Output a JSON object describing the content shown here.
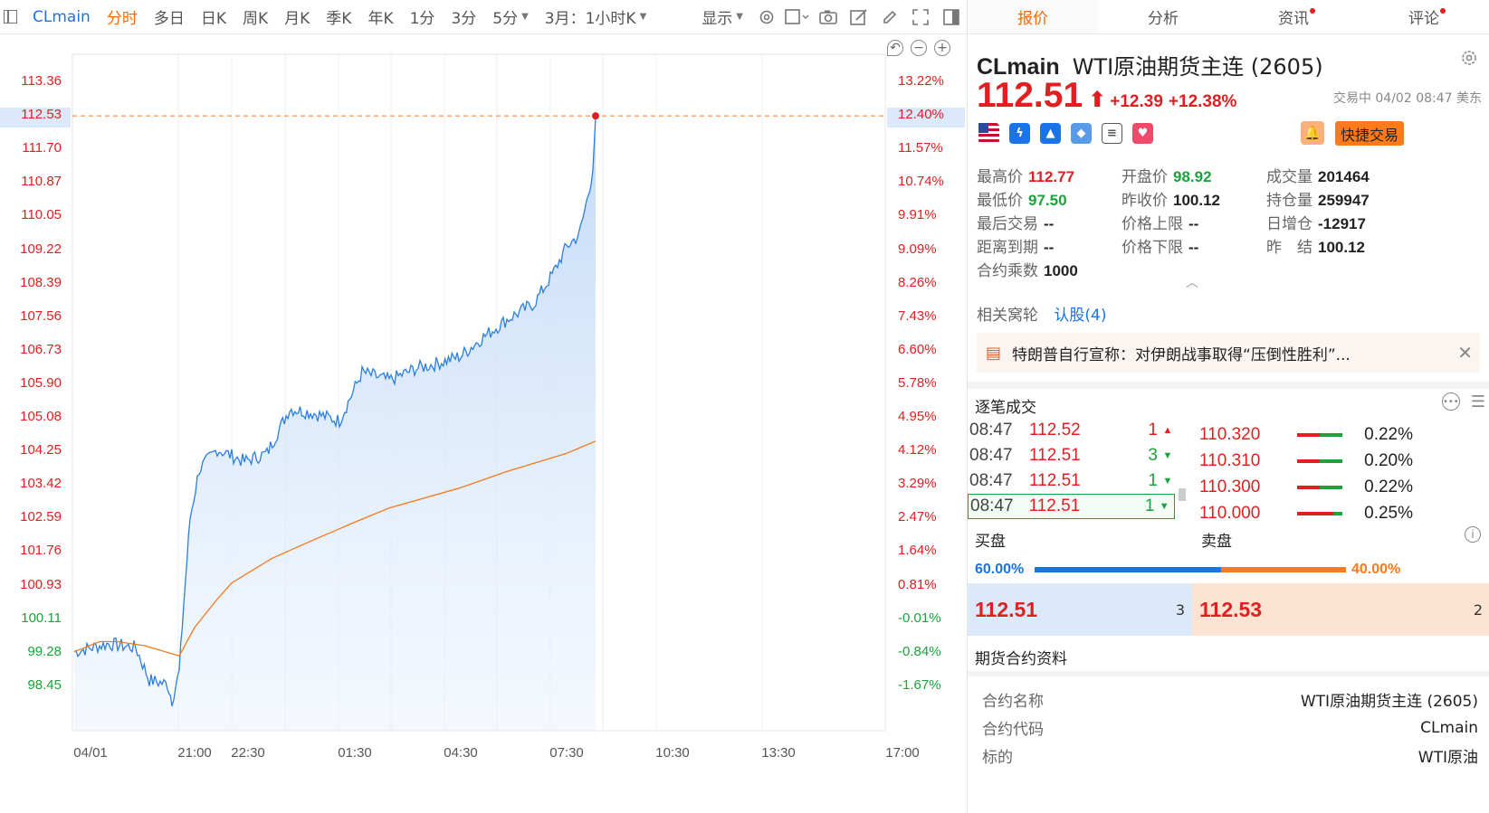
{
  "toolbar": {
    "symbol": "CLmain",
    "periods": [
      "分时",
      "多日",
      "日K",
      "周K",
      "月K",
      "季K",
      "年K",
      "1分",
      "3分",
      "5分"
    ],
    "active_period": "分时",
    "contract_select": "3月：1小时K",
    "display_label": "显示"
  },
  "chart": {
    "left_axis": [
      "113.36",
      "112.53",
      "111.70",
      "110.87",
      "110.05",
      "109.22",
      "108.39",
      "107.56",
      "106.73",
      "105.90",
      "105.08",
      "104.25",
      "103.42",
      "102.59",
      "101.76",
      "100.93",
      "100.11",
      "99.28",
      "98.45"
    ],
    "right_axis": [
      "13.22%",
      "12.40%",
      "11.57%",
      "10.74%",
      "9.91%",
      "9.09%",
      "8.26%",
      "7.43%",
      "6.60%",
      "5.78%",
      "4.95%",
      "4.12%",
      "3.29%",
      "2.47%",
      "1.64%",
      "0.81%",
      "-0.01%",
      "-0.84%",
      "-1.67%"
    ],
    "x_axis": [
      "04/01",
      "21:00",
      "22:30",
      "01:30",
      "04:30",
      "07:30",
      "10:30",
      "13:30",
      "17:00"
    ],
    "colors": {
      "up": "#e02020",
      "down": "#1aa33a",
      "price_line": "#2a7fe0",
      "avg_line": "#f07a20",
      "current_line": "#ff7a1a"
    }
  },
  "chart_data": {
    "type": "line",
    "title": "",
    "xlabel": "",
    "ylabel": "",
    "ylim": [
      98.45,
      113.36
    ],
    "prev_close": 100.12,
    "current": 112.53,
    "series": [
      {
        "name": "",
        "x": [
          "04/01",
          "21:00",
          "22:30",
          "01:30",
          "04:30",
          "07:30",
          "08:47"
        ],
        "values": [
          99.3,
          98.9,
          104.3,
          105.3,
          106.5,
          108.5,
          112.51
        ]
      },
      {
        "name": "",
        "x": [
          "04/01",
          "21:00",
          "22:30",
          "01:30",
          "04:30",
          "07:30",
          "08:47"
        ],
        "values": [
          99.3,
          99.2,
          100.9,
          102.2,
          103.0,
          103.8,
          104.5
        ]
      }
    ]
  },
  "tabs": [
    {
      "label": "报价",
      "dot": false
    },
    {
      "label": "分析",
      "dot": false
    },
    {
      "label": "资讯",
      "dot": true
    },
    {
      "label": "评论",
      "dot": true
    }
  ],
  "quote": {
    "code": "CLmain",
    "name": "WTI原油期货主连 (2605)",
    "price": "112.51",
    "change": "+12.39",
    "change_pct": "+12.38%",
    "status": "交易中 04/02 08:47 美东",
    "fast_trade": "快捷交易"
  },
  "stats": [
    [
      {
        "label": "最高价",
        "value": "112.77",
        "color": "red"
      },
      {
        "label": "开盘价",
        "value": "98.92",
        "color": "green"
      },
      {
        "label": "成交量",
        "value": "201464",
        "color": ""
      }
    ],
    [
      {
        "label": "最低价",
        "value": "97.50",
        "color": "green"
      },
      {
        "label": "昨收价",
        "value": "100.12",
        "color": ""
      },
      {
        "label": "持仓量",
        "value": "259947",
        "color": ""
      }
    ],
    [
      {
        "label": "最后交易",
        "value": "--",
        "color": ""
      },
      {
        "label": "价格上限",
        "value": "--",
        "color": ""
      },
      {
        "label": "日增仓",
        "value": "-12917",
        "color": ""
      }
    ],
    [
      {
        "label": "距离到期",
        "value": "--",
        "color": ""
      },
      {
        "label": "价格下限",
        "value": "--",
        "color": ""
      },
      {
        "label": "昨　结",
        "value": "100.12",
        "color": ""
      }
    ],
    [
      {
        "label": "合约乘数",
        "value": "1000",
        "color": ""
      }
    ]
  ],
  "warrants": {
    "label": "相关窝轮",
    "link": "认股(4)"
  },
  "news": {
    "text": "特朗普自行宣称：对伊朗战事取得“压倒性胜利”..."
  },
  "ticks": {
    "title": "逐笔成交",
    "rows": [
      {
        "time": "08:47",
        "price": "112.52",
        "qty": "1",
        "dir": "up"
      },
      {
        "time": "08:47",
        "price": "112.51",
        "qty": "3",
        "dir": "down"
      },
      {
        "time": "08:47",
        "price": "112.51",
        "qty": "1",
        "dir": "down"
      },
      {
        "time": "08:47",
        "price": "112.51",
        "qty": "1",
        "dir": "down"
      }
    ]
  },
  "depth": [
    {
      "price": "110.320",
      "pct": "0.22%",
      "red": 0.5
    },
    {
      "price": "110.310",
      "pct": "0.20%",
      "red": 0.5
    },
    {
      "price": "110.300",
      "pct": "0.22%",
      "red": 0.5
    },
    {
      "price": "110.000",
      "pct": "0.25%",
      "red": 0.8
    }
  ],
  "bidask": {
    "bid_label": "买盘",
    "ask_label": "卖盘",
    "bid_pct": "60.00%",
    "ask_pct": "40.00%",
    "bid_ratio": 0.6,
    "bid_price": "112.51",
    "bid_qty": "3",
    "ask_price": "112.53",
    "ask_qty": "2"
  },
  "contract": {
    "title": "期货合约资料",
    "rows": [
      {
        "k": "合约名称",
        "v": "WTI原油期货主连 (2605)"
      },
      {
        "k": "合约代码",
        "v": "CLmain"
      },
      {
        "k": "标的",
        "v": "WTI原油"
      }
    ]
  }
}
